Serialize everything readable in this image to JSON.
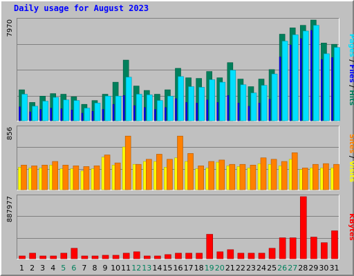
{
  "colors": {
    "background": "#C0C0C0",
    "frame": "#FFFFFF",
    "title": "#0000FF",
    "hits": "#00805C",
    "files": "#0000FF",
    "pages": "#00E0FF",
    "visits": "#FFFF00",
    "sites": "#FF8000",
    "kbytes": "#FF0000",
    "weekend_day_label": "#00805C",
    "weekday_label": "#000000"
  },
  "chart_data": {
    "type": "bar",
    "title": "Daily usage for August 2023",
    "categories": [
      "1",
      "2",
      "3",
      "4",
      "5",
      "6",
      "7",
      "8",
      "9",
      "10",
      "11",
      "12",
      "13",
      "14",
      "15",
      "16",
      "17",
      "18",
      "19",
      "20",
      "21",
      "22",
      "23",
      "24",
      "25",
      "26",
      "27",
      "28",
      "29",
      "30",
      "31"
    ],
    "weekend_days": [
      "5",
      "6",
      "12",
      "13",
      "19",
      "20",
      "26",
      "27"
    ],
    "panels": [
      {
        "ymax_label": "7970",
        "ymax": 7970,
        "legend": [
          "Pages",
          "/",
          "Files",
          "/",
          "Hits"
        ],
        "series": [
          {
            "name": "Hits",
            "values": [
              2450,
              1450,
              1950,
              2150,
              2100,
              1900,
              1300,
              1600,
              2100,
              3050,
              4800,
              2750,
              2400,
              2100,
              2450,
              4150,
              3400,
              3350,
              3900,
              3400,
              4600,
              3300,
              2700,
              3300,
              4050,
              6850,
              7350,
              7550,
              7970,
              6150,
              6050
            ]
          },
          {
            "name": "Files",
            "values": [
              1100,
              700,
              900,
              1000,
              950,
              850,
              600,
              750,
              900,
              1300,
              2000,
              1200,
              1050,
              900,
              1050,
              1750,
              1450,
              1400,
              1650,
              1450,
              2000,
              1400,
              1150,
              1400,
              1700,
              5050,
              6000,
              6500,
              7150,
              4850,
              5000
            ]
          },
          {
            "name": "Pages",
            "values": [
              2100,
              1150,
              1550,
              1850,
              1650,
              1600,
              1000,
              1400,
              1950,
              1950,
              3450,
              2100,
              2050,
              1600,
              1950,
              3500,
              2700,
              2650,
              3250,
              3050,
              4000,
              2850,
              2200,
              2800,
              3700,
              6300,
              6800,
              7100,
              7550,
              5300,
              5800
            ]
          }
        ]
      },
      {
        "ymax_label": "856",
        "ymax": 856,
        "legend": [
          "Sites",
          "/",
          "Visits"
        ],
        "series": [
          {
            "name": "Visits",
            "values": [
              310,
              300,
              300,
              340,
              290,
              290,
              260,
              290,
              450,
              340,
              590,
              350,
              390,
              390,
              310,
              440,
              390,
              290,
              300,
              380,
              330,
              320,
              300,
              360,
              350,
              330,
              420,
              280,
              300,
              300,
              300
            ]
          },
          {
            "name": "Sites",
            "values": [
              340,
              330,
              340,
              390,
              340,
              330,
              320,
              330,
              480,
              370,
              740,
              350,
              420,
              490,
              420,
              740,
              500,
              330,
              390,
              410,
              350,
              350,
              340,
              440,
              420,
              390,
              510,
              300,
              350,
              360,
              350
            ]
          }
        ]
      },
      {
        "ymax_label": "887977",
        "ymax": 887977,
        "legend": [
          "KBytes"
        ],
        "series": [
          {
            "name": "KBytes",
            "values": [
              40000,
              80000,
              40000,
              40000,
              80000,
              150000,
              40000,
              40000,
              50000,
              50000,
              80000,
              100000,
              40000,
              40000,
              60000,
              80000,
              80000,
              80000,
              350000,
              100000,
              130000,
              80000,
              80000,
              80000,
              150000,
              300000,
              300000,
              887977,
              310000,
              230000,
              400000
            ]
          }
        ]
      }
    ]
  }
}
